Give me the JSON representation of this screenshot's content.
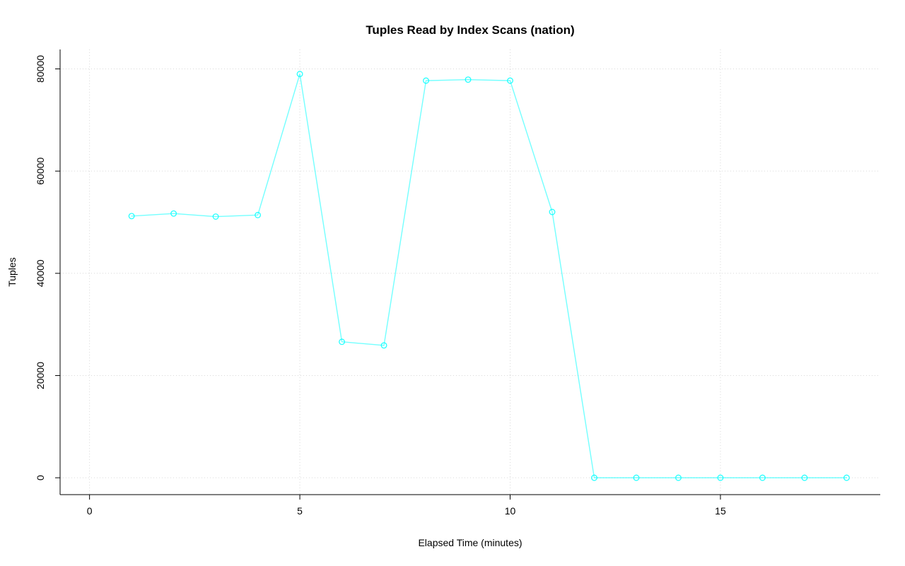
{
  "chart_data": {
    "type": "line",
    "title": "Tuples Read by Index Scans (nation)",
    "xlabel": "Elapsed Time (minutes)",
    "ylabel": "Tuples",
    "x": [
      1,
      2,
      3,
      4,
      5,
      6,
      7,
      8,
      9,
      10,
      11,
      12,
      13,
      14,
      15,
      16,
      17,
      18
    ],
    "y": [
      51200,
      51700,
      51100,
      51400,
      79000,
      26600,
      25900,
      77700,
      77900,
      77700,
      52000,
      0,
      0,
      0,
      0,
      0,
      0,
      0
    ],
    "xticks": [
      0,
      5,
      10,
      15
    ],
    "yticks": [
      0,
      20000,
      40000,
      60000,
      80000
    ],
    "xlim": [
      -0.7,
      18.8
    ],
    "ylim": [
      -3300,
      83800
    ],
    "grid": true,
    "legend": "none",
    "marker": "open-circle",
    "series_color": "#00FFFF",
    "grid_color": "#D9D9D9",
    "axis_color": "#000000",
    "background_color": "#FFFFFF"
  }
}
